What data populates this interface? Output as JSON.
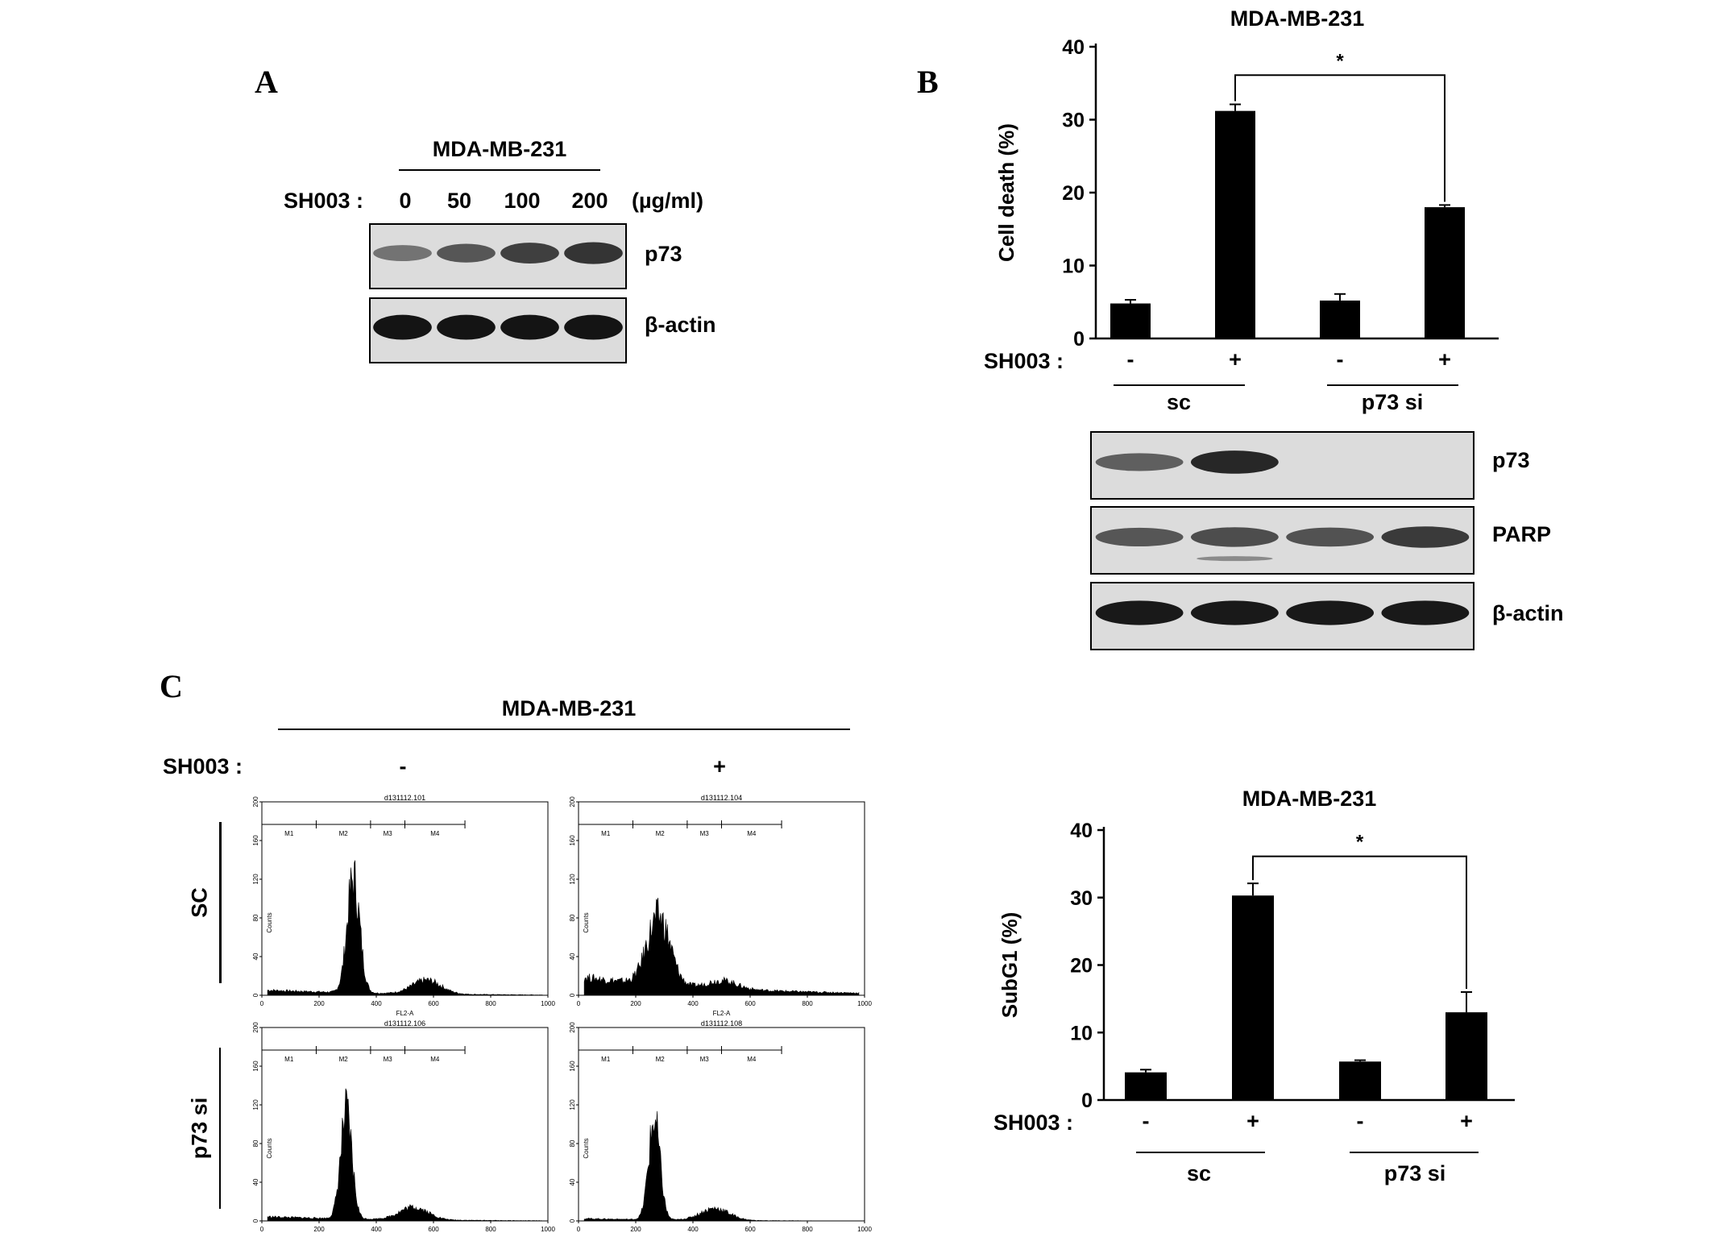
{
  "panel_a": {
    "letter": "A",
    "cell_line": "MDA-MB-231",
    "treatment_label": "SH003 :",
    "doses": [
      "0",
      "50",
      "100",
      "200"
    ],
    "dose_unit": "(µg/ml)",
    "blots": [
      {
        "label": "p73",
        "band_intensity": [
          0.45,
          0.6,
          0.72,
          0.78
        ]
      },
      {
        "label": "β-actin",
        "band_intensity": [
          0.95,
          0.95,
          0.95,
          0.95
        ]
      }
    ]
  },
  "panel_b": {
    "letter": "B",
    "chart": {
      "title": "MDA-MB-231",
      "ylabel": "Cell death (%)",
      "yticks": [
        "0",
        "10",
        "20",
        "30",
        "40"
      ],
      "treatment_label": "SH003 :",
      "signs": [
        "-",
        "+",
        "-",
        "+"
      ],
      "groups": [
        "sc",
        "p73 si"
      ],
      "significance": "*"
    },
    "blots": [
      {
        "label": "p73",
        "band_intensity": [
          0.55,
          0.85,
          0.0,
          0.0
        ]
      },
      {
        "label": "PARP",
        "band_intensity": [
          0.6,
          0.65,
          0.62,
          0.75
        ]
      },
      {
        "label": "β-actin",
        "band_intensity": [
          0.92,
          0.92,
          0.92,
          0.92
        ]
      }
    ]
  },
  "panel_c": {
    "letter": "C",
    "cell_line": "MDA-MB-231",
    "treatment_label": "SH003 :",
    "columns": [
      "-",
      "+"
    ],
    "rows": [
      "SC",
      "p73 si"
    ],
    "histograms": [
      {
        "title": "d131112.101",
        "peak_center": 320,
        "peak_height": 118,
        "spread": 22,
        "background": 6
      },
      {
        "title": "d131112.104",
        "peak_center": 280,
        "peak_height": 70,
        "spread": 40,
        "background": 20
      },
      {
        "title": "d131112.106",
        "peak_center": 295,
        "peak_height": 108,
        "spread": 20,
        "background": 5
      },
      {
        "title": "d131112.108",
        "peak_center": 265,
        "peak_height": 102,
        "spread": 20,
        "background": 3
      }
    ],
    "histogram_axes": {
      "xlabel": "FL2-A",
      "ylabel": "Counts",
      "xticks": [
        "0",
        "200",
        "400",
        "600",
        "800",
        "1000"
      ],
      "yticks": [
        "0",
        "40",
        "80",
        "120",
        "160",
        "200"
      ],
      "xlim": [
        0,
        1000
      ],
      "ylim": [
        0,
        200
      ],
      "gates": [
        "M1",
        "M2",
        "M3",
        "M4"
      ]
    },
    "chart": {
      "title": "MDA-MB-231",
      "ylabel": "SubG1 (%)",
      "yticks": [
        "0",
        "10",
        "20",
        "30",
        "40"
      ],
      "treatment_label": "SH003 :",
      "signs": [
        "-",
        "+",
        "-",
        "+"
      ],
      "groups": [
        "sc",
        "p73 si"
      ],
      "significance": "*"
    }
  },
  "chart_data": [
    {
      "type": "bar",
      "title": "MDA-MB-231",
      "ylabel": "Cell death (%)",
      "xlabel": "",
      "categories": [
        "sc -",
        "sc +",
        "p73 si -",
        "p73 si +"
      ],
      "values": [
        4.8,
        31.2,
        5.2,
        18.0
      ],
      "errors": [
        0.5,
        0.9,
        0.9,
        0.3
      ],
      "ylim": [
        0,
        40
      ],
      "bar_color": "#000000",
      "significance": {
        "between": [
          1,
          3
        ],
        "label": "*"
      }
    },
    {
      "type": "bar",
      "title": "MDA-MB-231",
      "ylabel": "SubG1 (%)",
      "xlabel": "",
      "categories": [
        "sc -",
        "sc +",
        "p73 si -",
        "p73 si +"
      ],
      "values": [
        4.1,
        30.3,
        5.7,
        13.0
      ],
      "errors": [
        0.4,
        1.8,
        0.2,
        3.0
      ],
      "ylim": [
        0,
        40
      ],
      "bar_color": "#000000",
      "significance": {
        "between": [
          1,
          3
        ],
        "label": "*"
      }
    }
  ]
}
